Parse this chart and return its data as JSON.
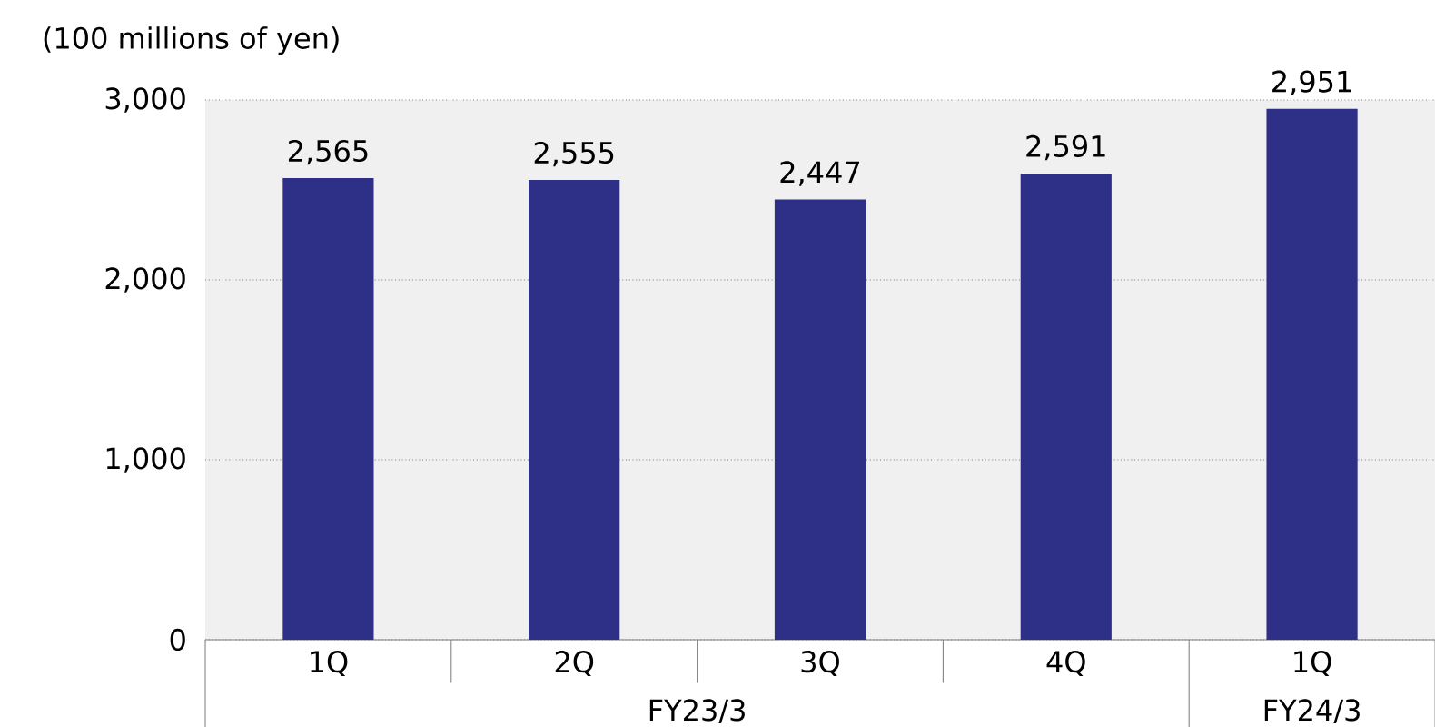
{
  "chart_data": {
    "type": "bar",
    "ylabel": "(100 millions of yen)",
    "categories": [
      "1Q",
      "2Q",
      "3Q",
      "4Q",
      "1Q"
    ],
    "values": [
      2565,
      2555,
      2447,
      2591,
      2951
    ],
    "value_labels": [
      "2,565",
      "2,555",
      "2,447",
      "2,591",
      "2,951"
    ],
    "color": "#2e3087",
    "ylim": [
      0,
      3000
    ],
    "yticks": [
      {
        "value": 0,
        "label": "0"
      },
      {
        "value": 1000,
        "label": "1,000"
      },
      {
        "value": 2000,
        "label": "2,000"
      },
      {
        "value": 3000,
        "label": "3,000"
      }
    ],
    "grid": "y",
    "annotations": [
      "FY23/3",
      "FY24/3"
    ]
  }
}
